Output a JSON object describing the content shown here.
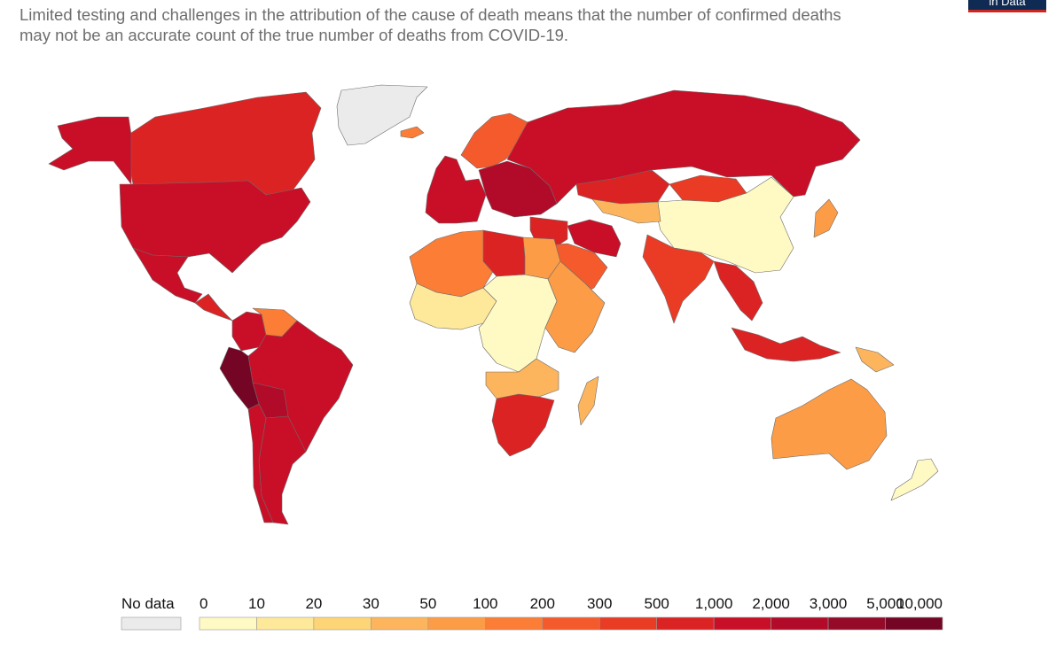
{
  "header": {
    "subtitle_line1": "Limited testing and challenges in the attribution of the cause of death means that the number of confirmed deaths",
    "subtitle_line2": "may not be an accurate count of the true number of deaths from COVID-19.",
    "logo_text": "in Data"
  },
  "legend": {
    "no_data_label": "No data",
    "no_data_color": "#ebebeb",
    "ticks": [
      "0",
      "10",
      "20",
      "30",
      "50",
      "100",
      "200",
      "300",
      "500",
      "1,000",
      "2,000",
      "3,000",
      "5,000",
      "10,000"
    ],
    "colors": [
      "#fff9c4",
      "#fee89a",
      "#fed576",
      "#fdb55d",
      "#fc9c46",
      "#fb7d36",
      "#f55a2c",
      "#ea3b24",
      "#dc2324",
      "#c90f27",
      "#b20b2a",
      "#950a28",
      "#740524"
    ]
  },
  "map": {
    "regions": [
      {
        "name": "Greenland",
        "color": "#ebebeb"
      },
      {
        "name": "Canada",
        "color": "#dc2324"
      },
      {
        "name": "Alaska",
        "color": "#c90f27"
      },
      {
        "name": "United States",
        "color": "#c90f27"
      },
      {
        "name": "Mexico",
        "color": "#c90f27"
      },
      {
        "name": "Central America",
        "color": "#dc2324"
      },
      {
        "name": "Colombia",
        "color": "#c90f27"
      },
      {
        "name": "Venezuela",
        "color": "#fb7d36"
      },
      {
        "name": "Brazil",
        "color": "#c90f27"
      },
      {
        "name": "Peru",
        "color": "#740524"
      },
      {
        "name": "Bolivia",
        "color": "#b20b2a"
      },
      {
        "name": "Argentina",
        "color": "#c90f27"
      },
      {
        "name": "Chile",
        "color": "#c90f27"
      },
      {
        "name": "Iceland",
        "color": "#fb7d36"
      },
      {
        "name": "Scandinavia",
        "color": "#f55a2c"
      },
      {
        "name": "Western Europe",
        "color": "#c90f27"
      },
      {
        "name": "Eastern Europe",
        "color": "#b20b2a"
      },
      {
        "name": "Russia",
        "color": "#c90f27"
      },
      {
        "name": "Kazakhstan",
        "color": "#dc2324"
      },
      {
        "name": "Mongolia",
        "color": "#ea3b24"
      },
      {
        "name": "China",
        "color": "#fff9c4"
      },
      {
        "name": "Central Asia",
        "color": "#fdb55d"
      },
      {
        "name": "Iran",
        "color": "#c90f27"
      },
      {
        "name": "Middle East",
        "color": "#dc2324"
      },
      {
        "name": "Saudi Arabia",
        "color": "#f55a2c"
      },
      {
        "name": "India",
        "color": "#ea3b24"
      },
      {
        "name": "Southeast Asia",
        "color": "#dc2324"
      },
      {
        "name": "Japan",
        "color": "#fc9c46"
      },
      {
        "name": "Indonesia",
        "color": "#dc2324"
      },
      {
        "name": "Papua New Guinea",
        "color": "#fdb55d"
      },
      {
        "name": "North Africa",
        "color": "#fb7d36"
      },
      {
        "name": "Libya",
        "color": "#dc2324"
      },
      {
        "name": "Egypt",
        "color": "#fc9c46"
      },
      {
        "name": "West Sahel",
        "color": "#fee89a"
      },
      {
        "name": "Central Africa",
        "color": "#fff9c4"
      },
      {
        "name": "East Africa",
        "color": "#fc9c46"
      },
      {
        "name": "Southern Africa",
        "color": "#dc2324"
      },
      {
        "name": "Angola / Zambia",
        "color": "#fdb55d"
      },
      {
        "name": "Madagascar",
        "color": "#fdb55d"
      },
      {
        "name": "Australia",
        "color": "#fc9c46"
      },
      {
        "name": "New Zealand",
        "color": "#fff9c4"
      }
    ]
  }
}
